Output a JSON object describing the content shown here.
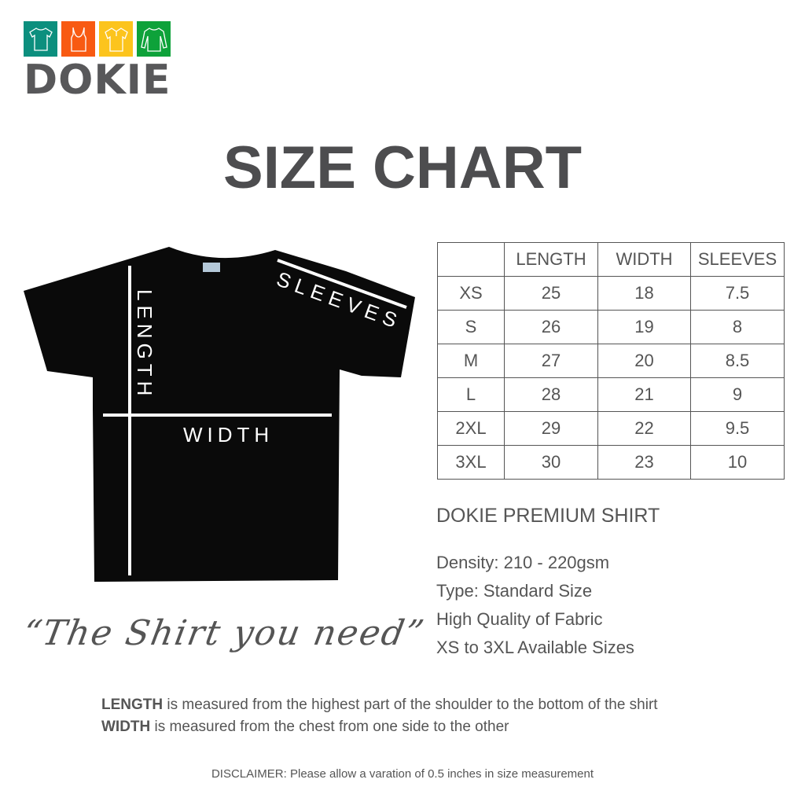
{
  "logo": {
    "text": "DOKIE",
    "colors": [
      "#0c8f7e",
      "#f85a12",
      "#fcc41d",
      "#0ea23a"
    ],
    "icons": [
      "tshirt-icon",
      "tank-top-icon",
      "polo-icon",
      "long-sleeve-icon"
    ]
  },
  "title": "SIZE CHART",
  "shirt_labels": {
    "length": "LENGTH",
    "width": "WIDTH",
    "sleeves": "SLEEVES"
  },
  "table": {
    "headers": [
      "",
      "LENGTH",
      "WIDTH",
      "SLEEVES"
    ],
    "rows": [
      [
        "XS",
        "25",
        "18",
        "7.5"
      ],
      [
        "S",
        "26",
        "19",
        "8"
      ],
      [
        "M",
        "27",
        "20",
        "8.5"
      ],
      [
        "L",
        "28",
        "21",
        "9"
      ],
      [
        "2XL",
        "29",
        "22",
        "9.5"
      ],
      [
        "3XL",
        "30",
        "23",
        "10"
      ]
    ]
  },
  "product": {
    "name": "DOKIE PREMIUM SHIRT",
    "specs": [
      "Density: 210 -  220gsm",
      "Type: Standard Size",
      "High Quality of Fabric",
      "XS to 3XL Available Sizes"
    ]
  },
  "quote": "“The Shirt you need”",
  "notes": [
    {
      "term": "LENGTH",
      "text": " is measured from the highest part of the shoulder to the bottom of the shirt"
    },
    {
      "term": "WIDTH",
      "text": " is measured from the chest from one side to the other"
    }
  ],
  "disclaimer": {
    "term": "DISCLAIMER:",
    "text": " Please allow a varation of 0.5 inches in size measurement"
  }
}
